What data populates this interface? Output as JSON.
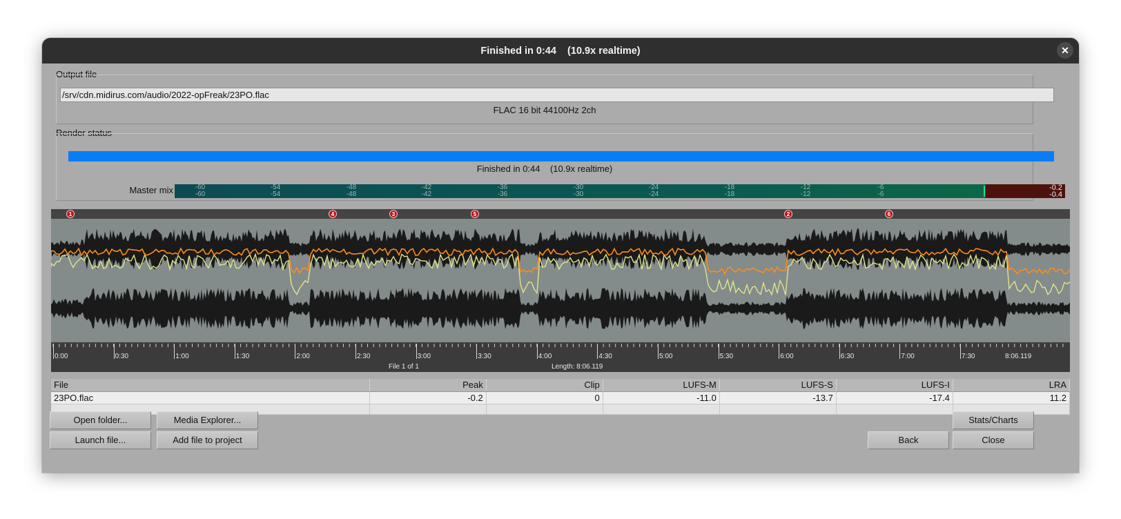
{
  "window": {
    "title": "Finished in 0:44    (10.9x realtime)",
    "close_glyph": "✕"
  },
  "output_file": {
    "group_label": "Output file",
    "path": "/srv/cdn.midirus.com/audio/2022-opFreak/23PO.flac",
    "format": "FLAC 16 bit 44100Hz 2ch"
  },
  "render_status": {
    "group_label": "Render status",
    "progress": 1.0,
    "status_text": "Finished in 0:44    (10.9x realtime)"
  },
  "master_meter": {
    "label": "Master mix",
    "scale": [
      "-60",
      "-54",
      "-48",
      "-42",
      "-36",
      "-30",
      "-24",
      "-18",
      "-12",
      "-6"
    ],
    "peak_left": "-0.2",
    "peak_right": "-0.4"
  },
  "markers": [
    "1",
    "4",
    "3",
    "5",
    "2",
    "6"
  ],
  "timeline": {
    "labels": [
      "0:00",
      "0:30",
      "1:00",
      "1:30",
      "2:00",
      "2:30",
      "3:00",
      "3:30",
      "4:00",
      "4:30",
      "5:00",
      "5:30",
      "6:00",
      "6:30",
      "7:00",
      "7:30",
      "8:06.119"
    ],
    "file_info": "File 1 of 1",
    "length": "Length: 8:06.119"
  },
  "table": {
    "headers": [
      "File",
      "Peak",
      "Clip",
      "LUFS-M",
      "LUFS-S",
      "LUFS-I",
      "LRA"
    ],
    "row": [
      "23PO.flac",
      "-0.2",
      "0",
      "-11.0",
      "-13.7",
      "-17.4",
      "11.2"
    ]
  },
  "buttons": {
    "open_folder": "Open folder...",
    "media_explorer": "Media Explorer...",
    "launch_file": "Launch file...",
    "add_file": "Add file to project",
    "stats_charts": "Stats/Charts",
    "back": "Back",
    "close": "Close"
  },
  "colors": {
    "progress": "#0a7df5",
    "waveform_bg": "#838b8b",
    "waveform": "#1a1a1a",
    "loudness_line": "#ff8c1a",
    "marker": "#b3171c"
  }
}
